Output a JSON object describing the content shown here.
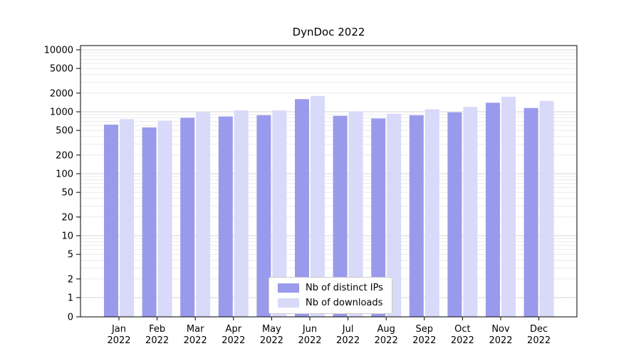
{
  "chart_data": {
    "type": "bar",
    "title": "DynDoc 2022",
    "scale": "symlog",
    "grid": true,
    "legend_position": "bottom-center-inside",
    "categories": [
      "Jan",
      "Feb",
      "Mar",
      "Apr",
      "May",
      "Jun",
      "Jul",
      "Aug",
      "Sep",
      "Oct",
      "Nov",
      "Dec"
    ],
    "category_year": "2022",
    "yticks": [
      0,
      1,
      2,
      5,
      10,
      20,
      50,
      100,
      200,
      500,
      1000,
      2000,
      5000,
      10000
    ],
    "ylim": [
      0,
      10000
    ],
    "series": [
      {
        "name": "Nb of distinct IPs",
        "color": "#9a9aec",
        "values": [
          620,
          560,
          800,
          840,
          880,
          1600,
          860,
          780,
          880,
          980,
          1400,
          1150
        ]
      },
      {
        "name": "Nb of downloads",
        "color": "#d9d9f9",
        "values": [
          760,
          720,
          980,
          1050,
          1050,
          1800,
          1020,
          930,
          1100,
          1200,
          1750,
          1500
        ]
      }
    ]
  }
}
